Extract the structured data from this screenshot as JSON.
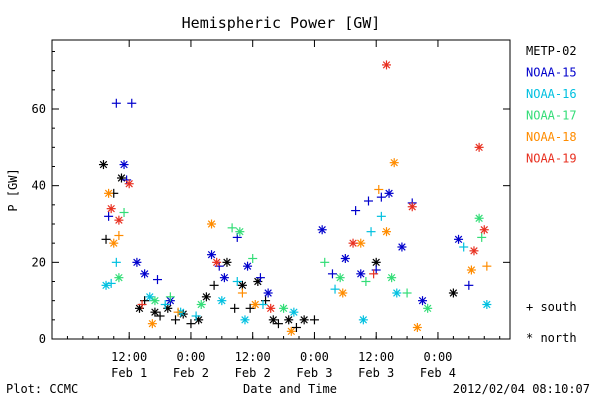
{
  "chart_data": {
    "type": "scatter",
    "title": "Hemispheric Power [GW]",
    "ylabel": "P [GW]",
    "xlabel": "Date and Time",
    "ylim": [
      0,
      78
    ],
    "xlim": [
      "2012-01-31T21:00",
      "2012-02-04T14:00"
    ],
    "yticks": [
      0,
      20,
      40,
      60
    ],
    "xticks": [
      {
        "time": "12:00",
        "date": "Feb 1",
        "at": "2012-02-01T12:00"
      },
      {
        "time": "0:00",
        "date": "Feb 2",
        "at": "2012-02-02T00:00"
      },
      {
        "time": "12:00",
        "date": "Feb 2",
        "at": "2012-02-02T12:00"
      },
      {
        "time": "0:00",
        "date": "Feb 3",
        "at": "2012-02-03T00:00"
      },
      {
        "time": "12:00",
        "date": "Feb 3",
        "at": "2012-02-03T12:00"
      },
      {
        "time": "0:00",
        "date": "Feb 4",
        "at": "2012-02-04T00:00"
      }
    ],
    "grid": false,
    "legend_position": "right",
    "footer_left": "Plot: CCMC",
    "footer_right": "2012/02/04 08:10:07",
    "markers": [
      {
        "label": "+ south",
        "marker": "+"
      },
      {
        "label": "* north",
        "marker": "*"
      }
    ],
    "series": [
      {
        "name": "METP-02",
        "color": "#000000",
        "points": [
          {
            "x": "2012-02-01T07:00",
            "y": 45.5,
            "m": "*"
          },
          {
            "x": "2012-02-01T07:30",
            "y": 26,
            "m": "+"
          },
          {
            "x": "2012-02-01T09:00",
            "y": 38,
            "m": "+"
          },
          {
            "x": "2012-02-01T10:30",
            "y": 42,
            "m": "*"
          },
          {
            "x": "2012-02-01T14:00",
            "y": 8,
            "m": "*"
          },
          {
            "x": "2012-02-01T15:00",
            "y": 10,
            "m": "+"
          },
          {
            "x": "2012-02-01T17:00",
            "y": 7,
            "m": "*"
          },
          {
            "x": "2012-02-01T18:00",
            "y": 6,
            "m": "+"
          },
          {
            "x": "2012-02-01T19:30",
            "y": 8,
            "m": "*"
          },
          {
            "x": "2012-02-01T21:00",
            "y": 5,
            "m": "+"
          },
          {
            "x": "2012-02-01T22:30",
            "y": 6.5,
            "m": "*"
          },
          {
            "x": "2012-02-02T00:00",
            "y": 4,
            "m": "+"
          },
          {
            "x": "2012-02-02T01:30",
            "y": 5,
            "m": "*"
          },
          {
            "x": "2012-02-02T03:00",
            "y": 11,
            "m": "*"
          },
          {
            "x": "2012-02-02T04:30",
            "y": 14,
            "m": "+"
          },
          {
            "x": "2012-02-02T07:00",
            "y": 20,
            "m": "*"
          },
          {
            "x": "2012-02-02T08:30",
            "y": 8,
            "m": "+"
          },
          {
            "x": "2012-02-02T10:00",
            "y": 14,
            "m": "*"
          },
          {
            "x": "2012-02-02T11:30",
            "y": 8,
            "m": "+"
          },
          {
            "x": "2012-02-02T13:00",
            "y": 15,
            "m": "*"
          },
          {
            "x": "2012-02-02T14:30",
            "y": 10,
            "m": "+"
          },
          {
            "x": "2012-02-02T16:00",
            "y": 5,
            "m": "*"
          },
          {
            "x": "2012-02-02T17:00",
            "y": 4,
            "m": "+"
          },
          {
            "x": "2012-02-02T19:00",
            "y": 5,
            "m": "*"
          },
          {
            "x": "2012-02-02T20:30",
            "y": 3,
            "m": "+"
          },
          {
            "x": "2012-02-02T22:00",
            "y": 5,
            "m": "*"
          },
          {
            "x": "2012-02-03T00:00",
            "y": 5,
            "m": "+"
          },
          {
            "x": "2012-02-03T12:00",
            "y": 20,
            "m": "*"
          },
          {
            "x": "2012-02-04T03:00",
            "y": 12,
            "m": "*"
          }
        ]
      },
      {
        "name": "NOAA-15",
        "color": "#0000cc",
        "points": [
          {
            "x": "2012-02-01T08:00",
            "y": 32,
            "m": "+"
          },
          {
            "x": "2012-02-01T09:30",
            "y": 61.5,
            "m": "+"
          },
          {
            "x": "2012-02-01T11:00",
            "y": 45.5,
            "m": "*"
          },
          {
            "x": "2012-02-01T11:30",
            "y": 41.5,
            "m": "+"
          },
          {
            "x": "2012-02-01T12:30",
            "y": 61.5,
            "m": "+"
          },
          {
            "x": "2012-02-01T13:30",
            "y": 20,
            "m": "*"
          },
          {
            "x": "2012-02-01T15:00",
            "y": 17,
            "m": "*"
          },
          {
            "x": "2012-02-01T17:30",
            "y": 15.5,
            "m": "+"
          },
          {
            "x": "2012-02-01T20:00",
            "y": 10,
            "m": "*"
          },
          {
            "x": "2012-02-02T04:00",
            "y": 22,
            "m": "*"
          },
          {
            "x": "2012-02-02T05:30",
            "y": 19,
            "m": "+"
          },
          {
            "x": "2012-02-02T06:30",
            "y": 16,
            "m": "*"
          },
          {
            "x": "2012-02-02T09:00",
            "y": 26.5,
            "m": "+"
          },
          {
            "x": "2012-02-02T11:00",
            "y": 19,
            "m": "*"
          },
          {
            "x": "2012-02-02T13:30",
            "y": 16,
            "m": "+"
          },
          {
            "x": "2012-02-02T15:00",
            "y": 12,
            "m": "*"
          },
          {
            "x": "2012-02-03T01:30",
            "y": 28.5,
            "m": "*"
          },
          {
            "x": "2012-02-03T03:30",
            "y": 17,
            "m": "+"
          },
          {
            "x": "2012-02-03T06:00",
            "y": 21,
            "m": "*"
          },
          {
            "x": "2012-02-03T08:00",
            "y": 33.5,
            "m": "+"
          },
          {
            "x": "2012-02-03T09:00",
            "y": 17,
            "m": "*"
          },
          {
            "x": "2012-02-03T10:30",
            "y": 36,
            "m": "+"
          },
          {
            "x": "2012-02-03T12:00",
            "y": 18,
            "m": "+"
          },
          {
            "x": "2012-02-03T13:00",
            "y": 37,
            "m": "+"
          },
          {
            "x": "2012-02-03T14:30",
            "y": 38,
            "m": "*"
          },
          {
            "x": "2012-02-03T17:00",
            "y": 24,
            "m": "*"
          },
          {
            "x": "2012-02-03T19:00",
            "y": 35.5,
            "m": "+"
          },
          {
            "x": "2012-02-03T21:00",
            "y": 10,
            "m": "*"
          },
          {
            "x": "2012-02-04T04:00",
            "y": 26,
            "m": "*"
          },
          {
            "x": "2012-02-04T06:00",
            "y": 14,
            "m": "+"
          }
        ]
      },
      {
        "name": "NOAA-16",
        "color": "#00c0e0",
        "points": [
          {
            "x": "2012-02-01T07:30",
            "y": 14,
            "m": "*"
          },
          {
            "x": "2012-02-01T08:30",
            "y": 14.5,
            "m": "+"
          },
          {
            "x": "2012-02-01T09:30",
            "y": 20,
            "m": "+"
          },
          {
            "x": "2012-02-01T16:00",
            "y": 11,
            "m": "*"
          },
          {
            "x": "2012-02-01T19:00",
            "y": 9,
            "m": "+"
          },
          {
            "x": "2012-02-01T22:00",
            "y": 7,
            "m": "*"
          },
          {
            "x": "2012-02-02T01:00",
            "y": 6,
            "m": "+"
          },
          {
            "x": "2012-02-02T06:00",
            "y": 10,
            "m": "*"
          },
          {
            "x": "2012-02-02T09:00",
            "y": 15,
            "m": "+"
          },
          {
            "x": "2012-02-02T10:30",
            "y": 5,
            "m": "*"
          },
          {
            "x": "2012-02-02T14:00",
            "y": 9,
            "m": "+"
          },
          {
            "x": "2012-02-02T20:00",
            "y": 7,
            "m": "*"
          },
          {
            "x": "2012-02-03T04:00",
            "y": 13,
            "m": "+"
          },
          {
            "x": "2012-02-03T09:30",
            "y": 5,
            "m": "*"
          },
          {
            "x": "2012-02-03T11:00",
            "y": 28,
            "m": "+"
          },
          {
            "x": "2012-02-03T13:00",
            "y": 32,
            "m": "+"
          },
          {
            "x": "2012-02-03T16:00",
            "y": 12,
            "m": "*"
          },
          {
            "x": "2012-02-04T05:00",
            "y": 24,
            "m": "+"
          },
          {
            "x": "2012-02-04T09:30",
            "y": 9,
            "m": "*"
          }
        ]
      },
      {
        "name": "NOAA-17",
        "color": "#33dd77",
        "points": [
          {
            "x": "2012-02-01T10:00",
            "y": 16,
            "m": "*"
          },
          {
            "x": "2012-02-01T11:00",
            "y": 33,
            "m": "+"
          },
          {
            "x": "2012-02-01T17:00",
            "y": 10,
            "m": "*"
          },
          {
            "x": "2012-02-01T20:00",
            "y": 11,
            "m": "+"
          },
          {
            "x": "2012-02-02T02:00",
            "y": 9,
            "m": "*"
          },
          {
            "x": "2012-02-02T08:00",
            "y": 29,
            "m": "+"
          },
          {
            "x": "2012-02-02T09:30",
            "y": 28,
            "m": "*"
          },
          {
            "x": "2012-02-02T12:00",
            "y": 21,
            "m": "+"
          },
          {
            "x": "2012-02-02T18:00",
            "y": 8,
            "m": "*"
          },
          {
            "x": "2012-02-03T02:00",
            "y": 20,
            "m": "+"
          },
          {
            "x": "2012-02-03T05:00",
            "y": 16,
            "m": "*"
          },
          {
            "x": "2012-02-03T10:00",
            "y": 15,
            "m": "+"
          },
          {
            "x": "2012-02-03T15:00",
            "y": 16,
            "m": "*"
          },
          {
            "x": "2012-02-03T18:00",
            "y": 12,
            "m": "+"
          },
          {
            "x": "2012-02-03T22:00",
            "y": 8,
            "m": "*"
          },
          {
            "x": "2012-02-04T08:00",
            "y": 31.5,
            "m": "*"
          },
          {
            "x": "2012-02-04T08:30",
            "y": 26.5,
            "m": "+"
          }
        ]
      },
      {
        "name": "NOAA-18",
        "color": "#ff8c00",
        "points": [
          {
            "x": "2012-02-01T08:00",
            "y": 38,
            "m": "*"
          },
          {
            "x": "2012-02-01T09:00",
            "y": 25,
            "m": "*"
          },
          {
            "x": "2012-02-01T10:00",
            "y": 27,
            "m": "+"
          },
          {
            "x": "2012-02-01T16:30",
            "y": 4,
            "m": "*"
          },
          {
            "x": "2012-02-01T21:30",
            "y": 7,
            "m": "+"
          },
          {
            "x": "2012-02-02T04:00",
            "y": 30,
            "m": "*"
          },
          {
            "x": "2012-02-02T10:00",
            "y": 12,
            "m": "+"
          },
          {
            "x": "2012-02-02T12:30",
            "y": 9,
            "m": "*"
          },
          {
            "x": "2012-02-02T19:30",
            "y": 2,
            "m": "*"
          },
          {
            "x": "2012-02-03T05:30",
            "y": 12,
            "m": "*"
          },
          {
            "x": "2012-02-03T09:00",
            "y": 25,
            "m": "*"
          },
          {
            "x": "2012-02-03T12:30",
            "y": 39,
            "m": "+"
          },
          {
            "x": "2012-02-03T14:00",
            "y": 28,
            "m": "*"
          },
          {
            "x": "2012-02-03T15:30",
            "y": 46,
            "m": "*"
          },
          {
            "x": "2012-02-03T20:00",
            "y": 3,
            "m": "*"
          },
          {
            "x": "2012-02-04T06:30",
            "y": 18,
            "m": "*"
          },
          {
            "x": "2012-02-04T09:30",
            "y": 19,
            "m": "+"
          }
        ]
      },
      {
        "name": "NOAA-19",
        "color": "#e83020",
        "points": [
          {
            "x": "2012-02-01T08:30",
            "y": 34,
            "m": "*"
          },
          {
            "x": "2012-02-01T10:00",
            "y": 31,
            "m": "*"
          },
          {
            "x": "2012-02-01T12:00",
            "y": 40.5,
            "m": "*"
          },
          {
            "x": "2012-02-01T14:30",
            "y": 9,
            "m": "+"
          },
          {
            "x": "2012-02-02T05:00",
            "y": 20,
            "m": "*"
          },
          {
            "x": "2012-02-02T15:30",
            "y": 8,
            "m": "*"
          },
          {
            "x": "2012-02-03T07:30",
            "y": 25,
            "m": "*"
          },
          {
            "x": "2012-02-03T11:30",
            "y": 17,
            "m": "+"
          },
          {
            "x": "2012-02-03T14:00",
            "y": 71.5,
            "m": "*"
          },
          {
            "x": "2012-02-03T19:00",
            "y": 34.5,
            "m": "*"
          },
          {
            "x": "2012-02-04T07:00",
            "y": 23,
            "m": "*"
          },
          {
            "x": "2012-02-04T08:00",
            "y": 50,
            "m": "*"
          },
          {
            "x": "2012-02-04T09:00",
            "y": 28.5,
            "m": "*"
          }
        ]
      }
    ]
  }
}
